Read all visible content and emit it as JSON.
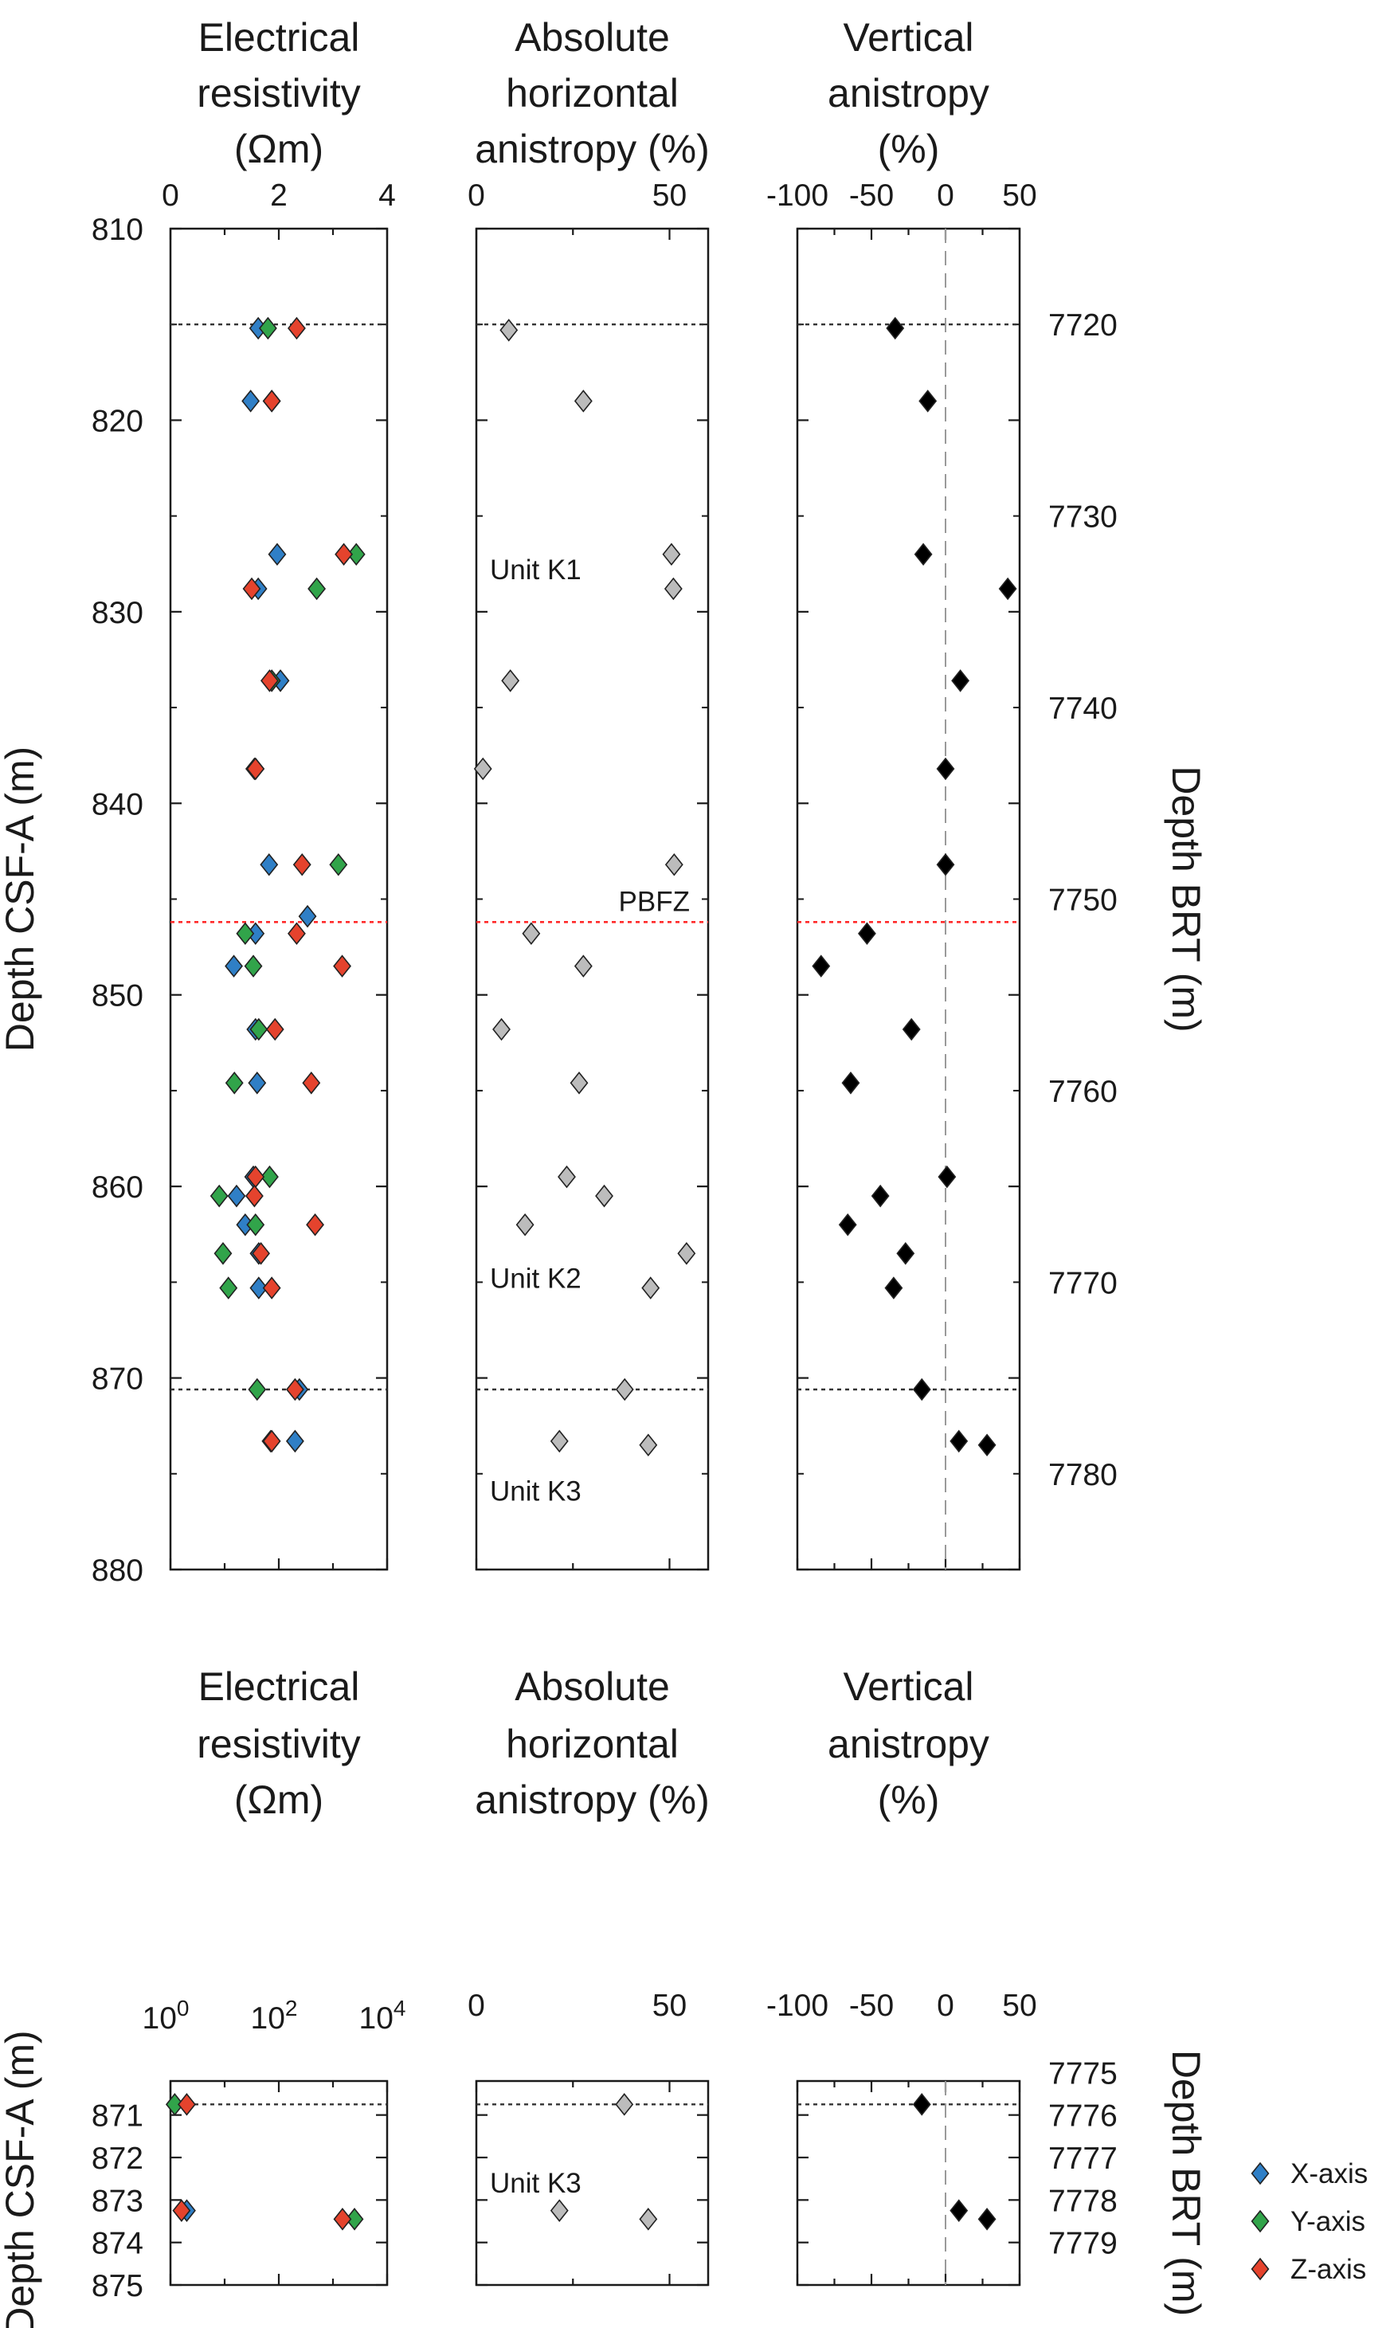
{
  "colors": {
    "x_axis": "#2f7fc6",
    "y_axis": "#31a44a",
    "z_axis": "#e5432d",
    "absolute_marker": "#bcbcbc",
    "vertical_marker": "#000000",
    "pbfz_line": "#ff2a2a",
    "boundary_line": "#333333"
  },
  "legend": {
    "x": "X-axis",
    "y": "Y-axis",
    "z": "Z-axis"
  },
  "chart_data": [
    {
      "type": "scatter",
      "panel": "top",
      "titles": {
        "resistivity": [
          "Electrical",
          "resistivity",
          "(Ωm)"
        ],
        "horizontal": [
          "Absolute",
          "horizontal",
          "anistropy (%)"
        ],
        "vertical": [
          "Vertical",
          "anistropy",
          "(%)"
        ]
      },
      "ylabel_left": "Depth CSF-A (m)",
      "ylabel_right": "Depth BRT (m)",
      "depth_range": [
        810,
        880
      ],
      "depth_ticks": [
        "810",
        "820",
        "830",
        "840",
        "850",
        "860",
        "870",
        "880"
      ],
      "depth_tick_values": [
        810,
        820,
        830,
        840,
        850,
        860,
        870,
        880
      ],
      "depth_minor_ticks": [
        815,
        825,
        835,
        845,
        855,
        865,
        875
      ],
      "brt_offset": 6905,
      "brt_ticks": [
        "7720",
        "7730",
        "7740",
        "7750",
        "7760",
        "7770",
        "7780"
      ],
      "brt_tick_values": [
        7720,
        7730,
        7740,
        7750,
        7760,
        7770,
        7780
      ],
      "boundaries": [
        815,
        870.6
      ],
      "pbfz_depth": 846.2,
      "pbfz_label": "PBFZ",
      "unit_labels": [
        {
          "text": "Unit K1",
          "depth": 827.8
        },
        {
          "text": "Unit K2",
          "depth": 864.8
        },
        {
          "text": "Unit K3",
          "depth": 875.9
        }
      ],
      "resistivity": {
        "scale": "linear",
        "range": [
          0,
          4
        ],
        "ticks": [
          "0",
          "2",
          "4"
        ],
        "tick_values": [
          0,
          2,
          4
        ],
        "minor_ticks": [
          1,
          3
        ],
        "series": [
          {
            "name": "X-axis",
            "points": [
              [
                1.62,
                815.2
              ],
              [
                1.48,
                819
              ],
              [
                1.97,
                827
              ],
              [
                1.62,
                828.8
              ],
              [
                2.03,
                833.6
              ],
              [
                1.55,
                838.2
              ],
              [
                1.82,
                843.2
              ],
              [
                2.53,
                845.9
              ],
              [
                1.57,
                846.8
              ],
              [
                1.17,
                848.5
              ],
              [
                1.57,
                851.8
              ],
              [
                1.6,
                854.6
              ],
              [
                1.53,
                859.5
              ],
              [
                1.22,
                860.5
              ],
              [
                1.38,
                862
              ],
              [
                1.63,
                863.5
              ],
              [
                1.63,
                865.3
              ],
              [
                2.38,
                870.6
              ],
              [
                2.3,
                873.3
              ]
            ]
          },
          {
            "name": "Y-axis",
            "points": [
              [
                1.8,
                815.2
              ],
              [
                1.87,
                819
              ],
              [
                3.43,
                827
              ],
              [
                2.7,
                828.8
              ],
              [
                1.87,
                833.6
              ],
              [
                1.57,
                838.2
              ],
              [
                3.1,
                843.2
              ],
              [
                1.38,
                846.8
              ],
              [
                1.53,
                848.5
              ],
              [
                1.63,
                851.8
              ],
              [
                1.18,
                854.6
              ],
              [
                1.83,
                859.5
              ],
              [
                0.9,
                860.5
              ],
              [
                1.57,
                862
              ],
              [
                0.97,
                863.5
              ],
              [
                1.07,
                865.3
              ],
              [
                1.6,
                870.6
              ],
              [
                1.85,
                873.3
              ]
            ]
          },
          {
            "name": "Z-axis",
            "points": [
              [
                2.33,
                815.2
              ],
              [
                1.87,
                819
              ],
              [
                3.2,
                827
              ],
              [
                1.5,
                828.8
              ],
              [
                1.83,
                833.6
              ],
              [
                1.57,
                838.2
              ],
              [
                2.43,
                843.2
              ],
              [
                2.33,
                846.8
              ],
              [
                3.17,
                848.5
              ],
              [
                1.93,
                851.8
              ],
              [
                2.6,
                854.6
              ],
              [
                1.57,
                859.5
              ],
              [
                1.55,
                860.5
              ],
              [
                2.67,
                862
              ],
              [
                1.67,
                863.5
              ],
              [
                1.87,
                865.3
              ],
              [
                2.3,
                870.6
              ],
              [
                1.87,
                873.3
              ]
            ]
          }
        ]
      },
      "horizontal": {
        "range": [
          0,
          60
        ],
        "ticks": [
          "0",
          "50"
        ],
        "tick_values": [
          0,
          50
        ],
        "minor_ticks": [
          25
        ],
        "points": [
          [
            8.4,
            815.3
          ],
          [
            27.7,
            819
          ],
          [
            50.5,
            827
          ],
          [
            51,
            828.8
          ],
          [
            8.8,
            833.6
          ],
          [
            1.7,
            838.2
          ],
          [
            51.2,
            843.2
          ],
          [
            14.2,
            846.8
          ],
          [
            27.7,
            848.5
          ],
          [
            6.5,
            851.8
          ],
          [
            26.6,
            854.6
          ],
          [
            23.4,
            859.5
          ],
          [
            33.1,
            860.5
          ],
          [
            12.6,
            862
          ],
          [
            54.4,
            863.5
          ],
          [
            45.1,
            865.3
          ],
          [
            38.4,
            870.6
          ],
          [
            21.5,
            873.3
          ],
          [
            44.5,
            873.5
          ]
        ]
      },
      "vertical": {
        "range": [
          -100,
          50
        ],
        "ticks": [
          "-100",
          "-50",
          "0",
          "50"
        ],
        "tick_values": [
          -100,
          -50,
          0,
          50
        ],
        "minor_ticks": [
          -75,
          -25,
          25
        ],
        "zero_line": 0,
        "points": [
          [
            -34,
            815.2
          ],
          [
            -12,
            819
          ],
          [
            -15,
            827
          ],
          [
            42,
            828.8
          ],
          [
            10,
            833.6
          ],
          [
            0,
            838.2
          ],
          [
            0,
            843.2
          ],
          [
            -53,
            846.8
          ],
          [
            -84,
            848.5
          ],
          [
            -23,
            851.8
          ],
          [
            -64,
            854.6
          ],
          [
            1,
            859.5
          ],
          [
            -44,
            860.5
          ],
          [
            -66,
            862
          ],
          [
            -27,
            863.5
          ],
          [
            -35,
            865.3
          ],
          [
            -16,
            870.6
          ],
          [
            9,
            873.3
          ],
          [
            28,
            873.5
          ]
        ]
      }
    },
    {
      "type": "scatter",
      "panel": "bottom",
      "titles": {
        "resistivity": [
          "Electrical",
          "resistivity",
          "(Ωm)"
        ],
        "horizontal": [
          "Absolute",
          "horizontal",
          "anistropy (%)"
        ],
        "vertical": [
          "Vertical",
          "anistropy",
          "(%)"
        ]
      },
      "ylabel_left": "Depth CSF-A (m)",
      "ylabel_right": "Depth BRT (m)",
      "depth_range": [
        870.2,
        875
      ],
      "depth_ticks": [
        "871",
        "872",
        "873",
        "874",
        "875"
      ],
      "depth_tick_values": [
        871,
        872,
        873,
        874,
        875
      ],
      "brt_offset": 6905,
      "brt_ticks": [
        "7775",
        "7776",
        "7777",
        "7778",
        "7779"
      ],
      "brt_tick_values": [
        7775,
        7776,
        7777,
        7778,
        7779
      ],
      "boundaries": [
        870.75
      ],
      "unit_labels": [
        {
          "text": "Unit K3",
          "depth": 872.6
        }
      ],
      "resistivity": {
        "scale": "log",
        "range": [
          1,
          10000
        ],
        "ticks": [
          {
            "base": "10",
            "exp": "0",
            "value": 1
          },
          {
            "base": "10",
            "exp": "2",
            "value": 100
          },
          {
            "base": "10",
            "exp": "4",
            "value": 10000
          }
        ],
        "minor_ticks": [
          10,
          1000
        ],
        "series": [
          {
            "name": "X-axis",
            "points": [
              [
                2,
                873.25
              ]
            ]
          },
          {
            "name": "Y-axis",
            "points": [
              [
                1.2,
                870.75
              ],
              [
                2500,
                873.45
              ]
            ]
          },
          {
            "name": "Z-axis",
            "points": [
              [
                2,
                870.75
              ],
              [
                1.6,
                873.25
              ],
              [
                1500,
                873.45
              ]
            ]
          }
        ]
      },
      "horizontal": {
        "range": [
          0,
          60
        ],
        "ticks": [
          "0",
          "50"
        ],
        "tick_values": [
          0,
          50
        ],
        "minor_ticks": [
          25
        ],
        "points": [
          [
            38.3,
            870.75
          ],
          [
            21.5,
            873.25
          ],
          [
            44.5,
            873.45
          ]
        ]
      },
      "vertical": {
        "range": [
          -100,
          50
        ],
        "ticks": [
          "-100",
          "-50",
          "0",
          "50"
        ],
        "tick_values": [
          -100,
          -50,
          0,
          50
        ],
        "minor_ticks": [
          -75,
          -25,
          25
        ],
        "zero_line": 0,
        "points": [
          [
            -16,
            870.75
          ],
          [
            9,
            873.25
          ],
          [
            28,
            873.45
          ]
        ]
      }
    }
  ]
}
